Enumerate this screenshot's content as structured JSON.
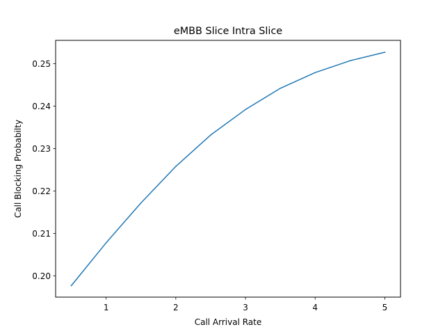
{
  "chart_data": {
    "type": "line",
    "title": "eMBB Slice Intra Slice",
    "xlabel": "Call Arrival Rate",
    "ylabel": "Call Blocking Probabilty",
    "xlim": [
      0.275,
      5.225
    ],
    "ylim": [
      0.195,
      0.2555
    ],
    "xticks": [
      1,
      2,
      3,
      4,
      5
    ],
    "xtick_labels": [
      "1",
      "2",
      "3",
      "4",
      "5"
    ],
    "yticks": [
      0.2,
      0.21,
      0.22,
      0.23,
      0.24,
      0.25
    ],
    "ytick_labels": [
      "0.20",
      "0.21",
      "0.22",
      "0.23",
      "0.24",
      "0.25"
    ],
    "grid": false,
    "series": [
      {
        "color": "#1f77b4",
        "x": [
          0.5,
          1.0,
          1.5,
          2.0,
          2.5,
          3.0,
          3.5,
          4.0,
          4.5,
          5.0
        ],
        "y": [
          0.1977,
          0.2078,
          0.2172,
          0.2258,
          0.2332,
          0.2392,
          0.2442,
          0.2479,
          0.2507,
          0.2527
        ]
      }
    ]
  }
}
